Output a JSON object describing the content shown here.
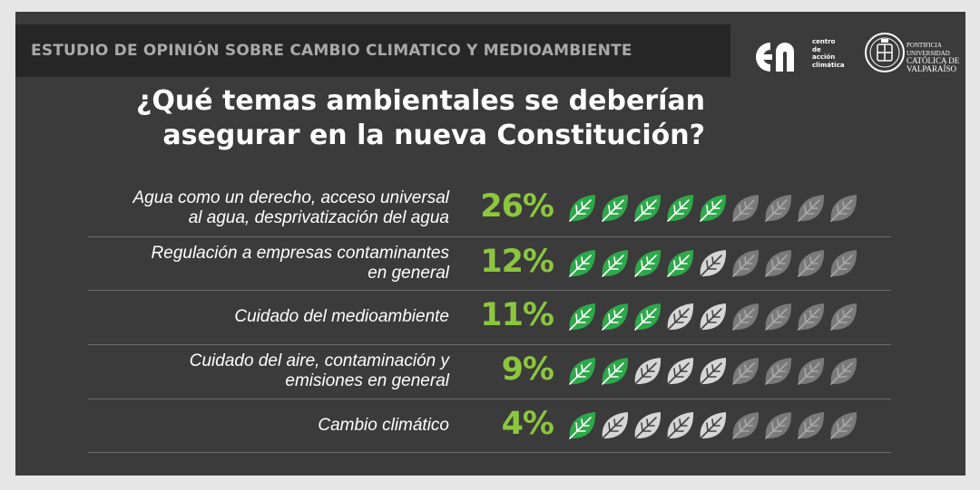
{
  "header": {
    "banner": "ESTUDIO DE OPINIÓN SOBRE CAMBIO CLIMATICO Y MEDIOAMBIENTE",
    "logo_cac_lines": [
      "centro",
      "de",
      "acción",
      "climática"
    ],
    "logo_pucv_lines": [
      "PONTIFICIA",
      "UNIVERSIDAD",
      "CATÓLICA DE",
      "VALPARAÍSO"
    ]
  },
  "question": {
    "line1": "¿Qué temas ambientales se deberían",
    "line2": "asegurar en la nueva Constitución?"
  },
  "colors": {
    "filled_leaf": "#2ea84a",
    "partial_leaf": "#d6d6d6",
    "empty_leaf": "#7a7a7a",
    "percent": "#8cc63f"
  },
  "chart_data": {
    "type": "pictograph",
    "icon": "leaf-icon",
    "icons_per_row": 9,
    "categories": [
      [
        "Agua como un derecho, acceso universal",
        "al agua, desprivatización del agua"
      ],
      [
        "Regulación a empresas contaminantes",
        "en general"
      ],
      [
        "Cuidado del medioambiente"
      ],
      [
        "Cuidado del aire, contaminación y",
        "emisiones en general"
      ],
      [
        "Cambio climático"
      ]
    ],
    "values": [
      26,
      12,
      11,
      9,
      4
    ],
    "labels": [
      "26%",
      "12%",
      "11%",
      "9%",
      "4%"
    ],
    "icon_states": [
      [
        "filled",
        "filled",
        "filled",
        "filled",
        "filled",
        "empty",
        "empty",
        "empty",
        "empty"
      ],
      [
        "filled",
        "filled",
        "filled",
        "filled",
        "partial",
        "empty",
        "empty",
        "empty",
        "empty"
      ],
      [
        "filled",
        "filled",
        "filled",
        "partial",
        "partial",
        "empty",
        "empty",
        "empty",
        "empty"
      ],
      [
        "filled",
        "filled",
        "partial",
        "partial",
        "partial",
        "empty",
        "empty",
        "empty",
        "empty"
      ],
      [
        "filled",
        "partial",
        "partial",
        "partial",
        "partial",
        "empty",
        "empty",
        "empty",
        "empty"
      ]
    ]
  }
}
